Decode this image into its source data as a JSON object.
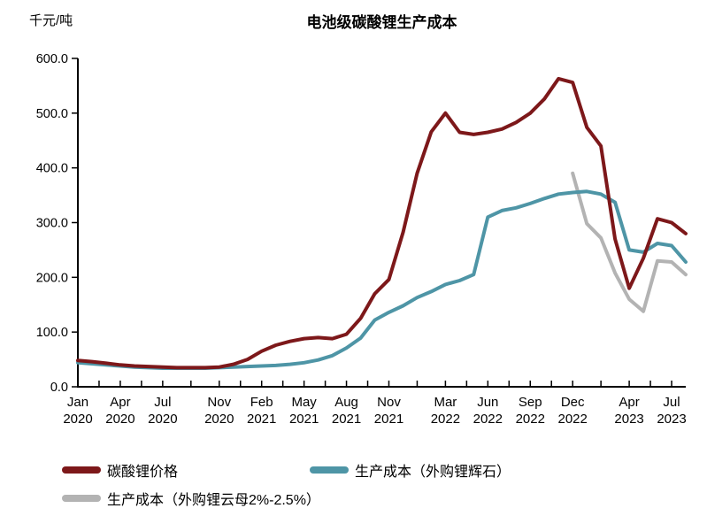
{
  "chart_data": {
    "type": "line",
    "title": "电池级碳酸锂生产成本",
    "unit_label": "千元/吨",
    "xlabel": "",
    "ylabel": "千元/吨",
    "ylim": [
      0,
      600
    ],
    "grid": false,
    "legend_position": "bottom",
    "y_ticks": [
      0,
      100,
      200,
      300,
      400,
      500,
      600
    ],
    "y_tick_labels": [
      "0.0",
      "100.0",
      "200.0",
      "300.0",
      "400.0",
      "500.0",
      "600.0"
    ],
    "x_months": [
      "2020-01",
      "2020-02",
      "2020-03",
      "2020-04",
      "2020-05",
      "2020-06",
      "2020-07",
      "2020-08",
      "2020-09",
      "2020-10",
      "2020-11",
      "2020-12",
      "2021-01",
      "2021-02",
      "2021-03",
      "2021-04",
      "2021-05",
      "2021-06",
      "2021-07",
      "2021-08",
      "2021-09",
      "2021-10",
      "2021-11",
      "2021-12",
      "2022-01",
      "2022-02",
      "2022-03",
      "2022-04",
      "2022-05",
      "2022-06",
      "2022-07",
      "2022-08",
      "2022-09",
      "2022-10",
      "2022-11",
      "2022-12",
      "2023-01",
      "2023-02",
      "2023-03",
      "2023-04",
      "2023-05",
      "2023-06",
      "2023-07",
      "2023-08"
    ],
    "x_tick_indices": [
      0,
      3,
      6,
      10,
      13,
      16,
      19,
      22,
      26,
      29,
      32,
      35,
      39,
      42
    ],
    "x_tick_labels": [
      {
        "month": "Jan",
        "year": "2020"
      },
      {
        "month": "Apr",
        "year": "2020"
      },
      {
        "month": "Jul",
        "year": "2020"
      },
      {
        "month": "Nov",
        "year": "2020"
      },
      {
        "month": "Feb",
        "year": "2021"
      },
      {
        "month": "May",
        "year": "2021"
      },
      {
        "month": "Aug",
        "year": "2021"
      },
      {
        "month": "Nov",
        "year": "2021"
      },
      {
        "month": "Mar",
        "year": "2022"
      },
      {
        "month": "Jun",
        "year": "2022"
      },
      {
        "month": "Sep",
        "year": "2022"
      },
      {
        "month": "Dec",
        "year": "2022"
      },
      {
        "month": "Apr",
        "year": "2023"
      },
      {
        "month": "Jul",
        "year": "2023"
      }
    ],
    "series": [
      {
        "name": "碳酸锂价格",
        "color": "#7d181a",
        "values": [
          48,
          46,
          43,
          40,
          38,
          37,
          36,
          35,
          35,
          35,
          36,
          41,
          50,
          65,
          76,
          83,
          88,
          90,
          88,
          96,
          125,
          170,
          196,
          282,
          390,
          466,
          500,
          465,
          461,
          465,
          471,
          483,
          500,
          526,
          563,
          556,
          474,
          440,
          270,
          180,
          235,
          307,
          300,
          280
        ]
      },
      {
        "name": "生产成本（外购锂辉石）",
        "color": "#4e95a6",
        "values": [
          44,
          42,
          40,
          38,
          36,
          35,
          34,
          34,
          34,
          34,
          35,
          36,
          37,
          38,
          39,
          41,
          44,
          49,
          57,
          71,
          89,
          122,
          136,
          148,
          163,
          174,
          187,
          194,
          205,
          310,
          322,
          327,
          335,
          344,
          352,
          355,
          357,
          352,
          337,
          250,
          246,
          262,
          258,
          228
        ]
      },
      {
        "name": "生产成本（外购锂云母2%-2.5%）",
        "color": "#b3b3b3",
        "values": [
          null,
          null,
          null,
          null,
          null,
          null,
          null,
          null,
          null,
          null,
          null,
          null,
          null,
          null,
          null,
          null,
          null,
          null,
          null,
          null,
          null,
          null,
          null,
          null,
          null,
          null,
          null,
          null,
          null,
          null,
          null,
          null,
          null,
          null,
          null,
          390,
          298,
          272,
          208,
          160,
          138,
          230,
          228,
          205
        ]
      }
    ]
  },
  "legend": {
    "items": [
      {
        "label": "碳酸锂价格",
        "color": "#7d181a"
      },
      {
        "label": "生产成本（外购锂辉石）",
        "color": "#4e95a6"
      },
      {
        "label": "生产成本（外购锂云母2%-2.5%）",
        "color": "#b3b3b3"
      }
    ]
  }
}
